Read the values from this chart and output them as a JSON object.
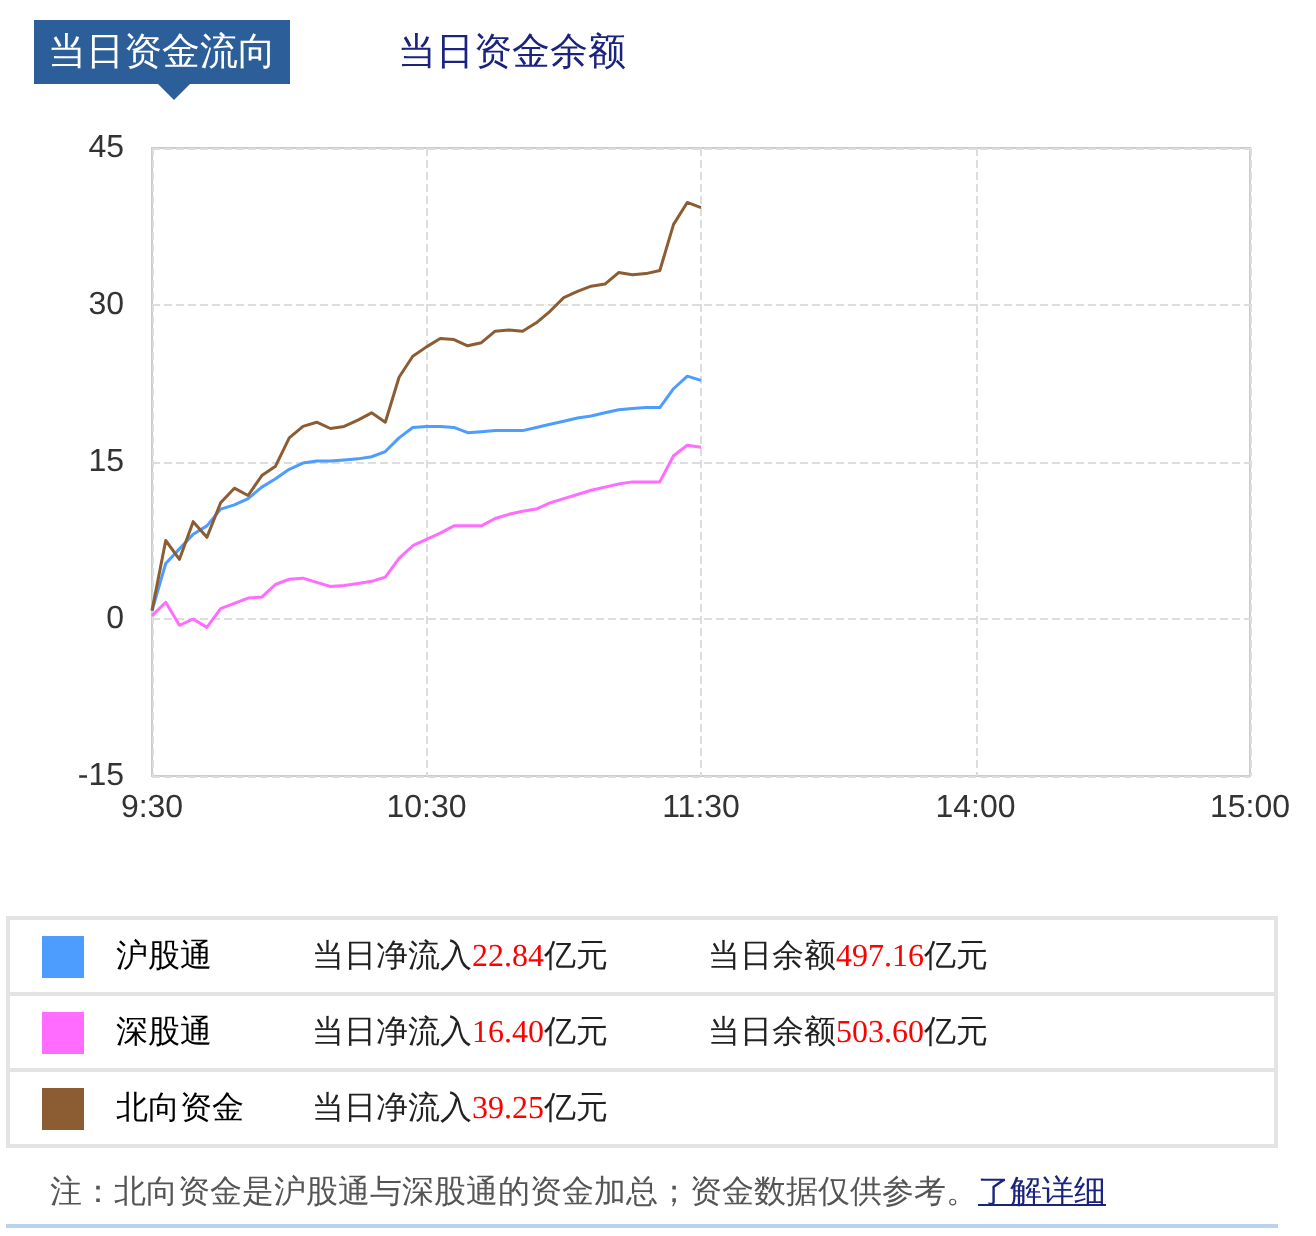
{
  "chart_data": {
    "type": "line",
    "title": "当日资金流向",
    "subtitle": "当日资金余额",
    "categories": [
      "9:30",
      null,
      null,
      null,
      null,
      null,
      null,
      null,
      null,
      null,
      null,
      null,
      null,
      null,
      null,
      null,
      null,
      null,
      null,
      null,
      "10:30",
      null,
      null,
      null,
      null,
      null,
      null,
      null,
      null,
      null,
      null,
      null,
      null,
      null,
      null,
      null,
      null,
      null,
      null,
      null,
      "11:30",
      null,
      null,
      null,
      null,
      null,
      null,
      null,
      null,
      null,
      null,
      null,
      null,
      null,
      null,
      null,
      null,
      null,
      null,
      null,
      "14:00",
      null,
      null,
      null,
      null,
      null,
      null,
      null,
      null,
      null,
      null,
      null,
      null,
      null,
      null,
      null,
      null,
      null,
      null,
      null,
      "15:00"
    ],
    "ylim": [
      -15,
      45
    ],
    "yticks": [
      -15,
      0,
      15,
      30,
      45
    ],
    "grid": true,
    "legend": "bottom",
    "marker": "none",
    "line_style": "solid",
    "series": [
      {
        "name": "沪股通",
        "color": "#4d9cff",
        "values": [
          0.8,
          5.3,
          6.7,
          8.1,
          8.9,
          10.5,
          10.9,
          11.5,
          12.6,
          13.4,
          14.3,
          14.9,
          15.1,
          15.1,
          15.2,
          15.3,
          15.5,
          16.0,
          17.3,
          18.3,
          18.4,
          18.4,
          18.3,
          17.8,
          17.9,
          18.0,
          18.0,
          18.0,
          18.3,
          18.6,
          18.9,
          19.2,
          19.4,
          19.7,
          20.0,
          20.1,
          20.2,
          20.2,
          22.0,
          23.2,
          22.8,
          null,
          null,
          null,
          null,
          null,
          null,
          null,
          null,
          null,
          null,
          null,
          null,
          null,
          null,
          null,
          null,
          null,
          null,
          null,
          null,
          null,
          null,
          null,
          null,
          null,
          null,
          null,
          null,
          null,
          null,
          null,
          null,
          null,
          null,
          null,
          null,
          null,
          null,
          null,
          null
        ]
      },
      {
        "name": "深股通",
        "color": "#ff6cff",
        "values": [
          0.3,
          1.6,
          -0.6,
          0.0,
          -0.8,
          1.0,
          1.5,
          2.0,
          2.1,
          3.3,
          3.8,
          3.9,
          3.5,
          3.1,
          3.2,
          3.4,
          3.6,
          4.0,
          5.8,
          7.0,
          7.6,
          8.2,
          8.9,
          8.9,
          8.9,
          9.6,
          10.0,
          10.3,
          10.5,
          11.1,
          11.5,
          11.9,
          12.3,
          12.6,
          12.9,
          13.1,
          13.1,
          13.1,
          15.6,
          16.6,
          16.4,
          null,
          null,
          null,
          null,
          null,
          null,
          null,
          null,
          null,
          null,
          null,
          null,
          null,
          null,
          null,
          null,
          null,
          null,
          null,
          null,
          null,
          null,
          null,
          null,
          null,
          null,
          null,
          null,
          null,
          null,
          null,
          null,
          null,
          null,
          null,
          null,
          null,
          null,
          null,
          null
        ]
      },
      {
        "name": "北向资金",
        "color": "#8c5d32",
        "values": [
          0.8,
          7.5,
          5.7,
          9.3,
          7.8,
          11.1,
          12.5,
          11.8,
          13.7,
          14.6,
          17.3,
          18.4,
          18.8,
          18.2,
          18.4,
          19.0,
          19.7,
          18.8,
          23.1,
          25.1,
          26.0,
          26.8,
          26.7,
          26.1,
          26.4,
          27.5,
          27.6,
          27.5,
          28.3,
          29.4,
          30.7,
          31.3,
          31.8,
          32.0,
          33.1,
          32.9,
          33.0,
          33.3,
          37.7,
          39.8,
          39.3,
          null,
          null,
          null,
          null,
          null,
          null,
          null,
          null,
          null,
          null,
          null,
          null,
          null,
          null,
          null,
          null,
          null,
          null,
          null,
          null,
          null,
          null,
          null,
          null,
          null,
          null,
          null,
          null,
          null,
          null,
          null,
          null,
          null,
          null,
          null,
          null,
          null,
          null,
          null,
          null
        ]
      }
    ],
    "annotations": [
      "当日净流入22.84亿元",
      "当日余额497.16亿元",
      "当日净流入16.40亿元",
      "当日余额503.60亿元",
      "当日净流入39.25亿元",
      "注：北向资金是沪股通与深股通的资金加总；资金数据仅供参考。",
      "了解详细"
    ]
  }
}
